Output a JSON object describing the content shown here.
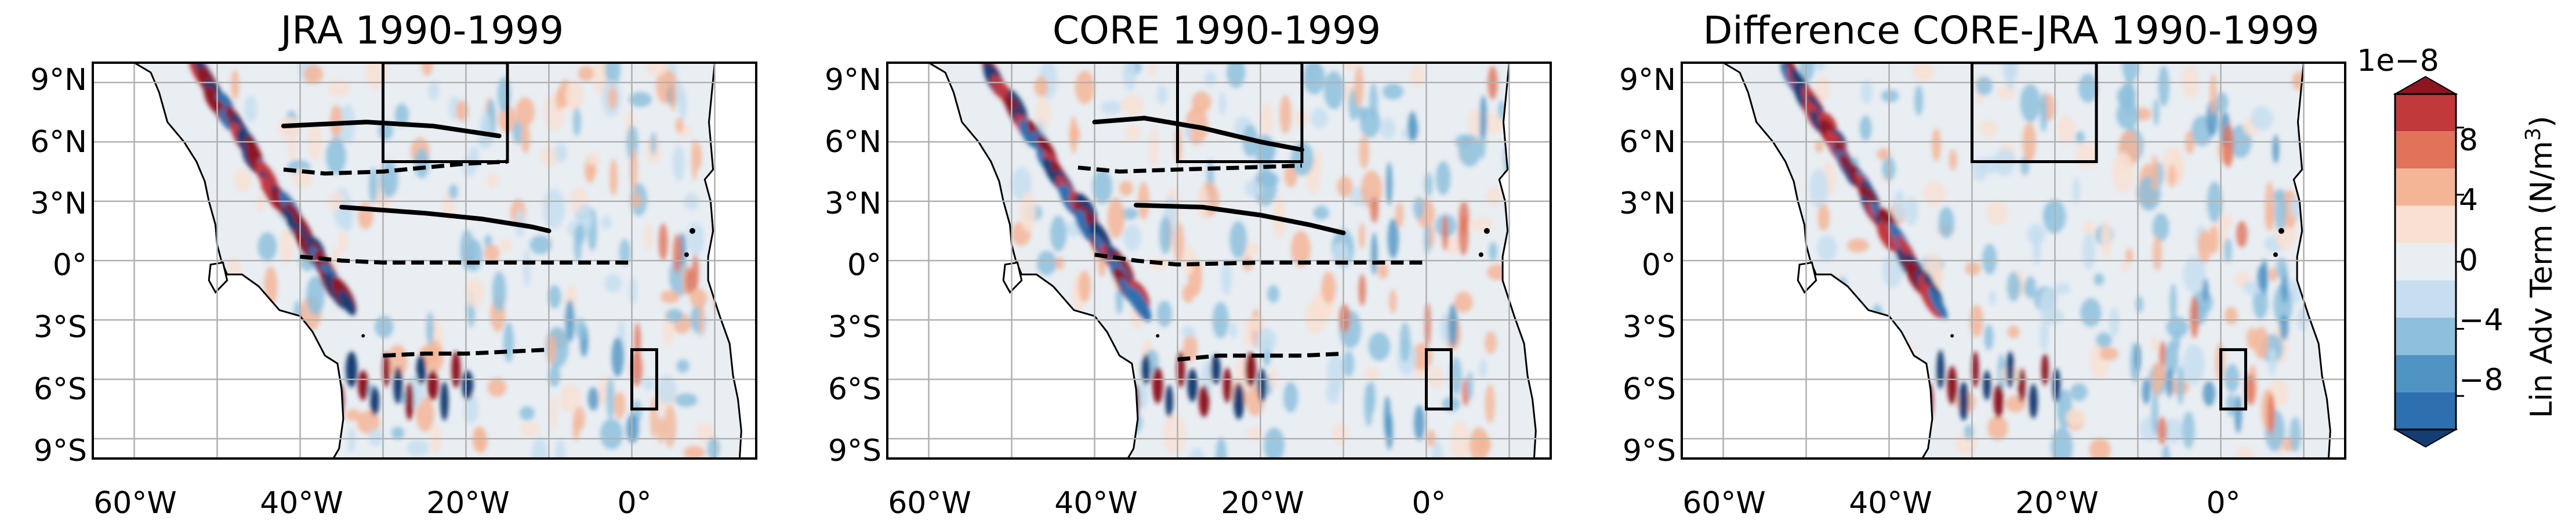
{
  "chart_data": [
    {
      "type": "heatmap",
      "title": "JRA 1990-1999",
      "x_ticks": [
        "60°W",
        "40°W",
        "20°W",
        "0°"
      ],
      "y_ticks": [
        "9°N",
        "6°N",
        "3°N",
        "0°",
        "3°S",
        "6°S",
        "9°S"
      ],
      "xlim": [
        -65,
        15
      ],
      "ylim": [
        -10,
        10
      ],
      "grid": true,
      "boxes": [
        {
          "lon": [
            -30,
            -15
          ],
          "lat": [
            5,
            10
          ]
        },
        {
          "lon": [
            0,
            3
          ],
          "lat": [
            -7.5,
            -4.5
          ]
        }
      ],
      "solid_lines": [
        {
          "lon": [
            -42,
            -32,
            -24,
            -16
          ],
          "lat": [
            6.8,
            7.0,
            6.8,
            6.3
          ]
        },
        {
          "lon": [
            -35,
            -25,
            -18,
            -12,
            -10
          ],
          "lat": [
            2.7,
            2.4,
            2.1,
            1.7,
            1.5
          ]
        }
      ],
      "dashed_lines": [
        {
          "lon": [
            -42,
            -37,
            -30,
            -20,
            -15
          ],
          "lat": [
            4.6,
            4.4,
            4.5,
            4.9,
            5.0
          ]
        },
        {
          "lon": [
            -40,
            -35,
            -30,
            -20,
            -10,
            0
          ],
          "lat": [
            0.2,
            0.0,
            -0.1,
            -0.1,
            -0.1,
            -0.1
          ]
        },
        {
          "lon": [
            -30,
            -25,
            -20,
            -15,
            -10
          ],
          "lat": [
            -4.8,
            -4.7,
            -4.7,
            -4.6,
            -4.5
          ]
        }
      ]
    },
    {
      "type": "heatmap",
      "title": "CORE 1990-1999",
      "x_ticks": [
        "60°W",
        "40°W",
        "20°W",
        "0°"
      ],
      "y_ticks": [
        "9°N",
        "6°N",
        "3°N",
        "0°",
        "3°S",
        "6°S",
        "9°S"
      ],
      "xlim": [
        -65,
        15
      ],
      "ylim": [
        -10,
        10
      ],
      "grid": true,
      "boxes": [
        {
          "lon": [
            -30,
            -15
          ],
          "lat": [
            5,
            10
          ]
        },
        {
          "lon": [
            0,
            3
          ],
          "lat": [
            -7.5,
            -4.5
          ]
        }
      ],
      "solid_lines": [
        {
          "lon": [
            -40,
            -34,
            -27,
            -20,
            -15
          ],
          "lat": [
            7.0,
            7.2,
            6.7,
            6.0,
            5.6
          ]
        },
        {
          "lon": [
            -35,
            -27,
            -20,
            -14,
            -10
          ],
          "lat": [
            2.8,
            2.7,
            2.3,
            1.8,
            1.4
          ]
        }
      ],
      "dashed_lines": [
        {
          "lon": [
            -42,
            -37,
            -30,
            -22,
            -15
          ],
          "lat": [
            4.7,
            4.5,
            4.6,
            4.7,
            4.8
          ]
        },
        {
          "lon": [
            -40,
            -35,
            -30,
            -20,
            -10,
            0
          ],
          "lat": [
            0.3,
            0.0,
            -0.2,
            -0.1,
            -0.1,
            -0.1
          ]
        },
        {
          "lon": [
            -30,
            -25,
            -20,
            -15,
            -10
          ],
          "lat": [
            -5.0,
            -4.8,
            -4.8,
            -4.8,
            -4.7
          ]
        }
      ]
    },
    {
      "type": "heatmap",
      "title": "Difference CORE-JRA 1990-1999",
      "x_ticks": [
        "60°W",
        "40°W",
        "20°W",
        "0°"
      ],
      "y_ticks": [
        "9°N",
        "6°N",
        "3°N",
        "0°",
        "3°S",
        "6°S",
        "9°S"
      ],
      "xlim": [
        -65,
        15
      ],
      "ylim": [
        -10,
        10
      ],
      "grid": true,
      "boxes": [
        {
          "lon": [
            -30,
            -15
          ],
          "lat": [
            5,
            10
          ]
        },
        {
          "lon": [
            0,
            3
          ],
          "lat": [
            -7.5,
            -4.5
          ]
        }
      ],
      "solid_lines": [],
      "dashed_lines": []
    }
  ],
  "colorbar": {
    "label": "Lin Adv Term (N/m",
    "label_superscript": "3",
    "label_close": ")",
    "scale": "1e−8",
    "ticks": [
      "8",
      "4",
      "0",
      "−4",
      "−8"
    ],
    "tick_values": [
      8,
      4,
      0,
      -4,
      -8
    ],
    "range": [
      -10,
      10
    ],
    "colors": [
      "#143d73",
      "#2d6faf",
      "#4f93c3",
      "#8dc0dd",
      "#c6def0",
      "#e9eef3",
      "#f8e1d3",
      "#f4b597",
      "#e0735a",
      "#c2393c",
      "#8e1421"
    ]
  }
}
